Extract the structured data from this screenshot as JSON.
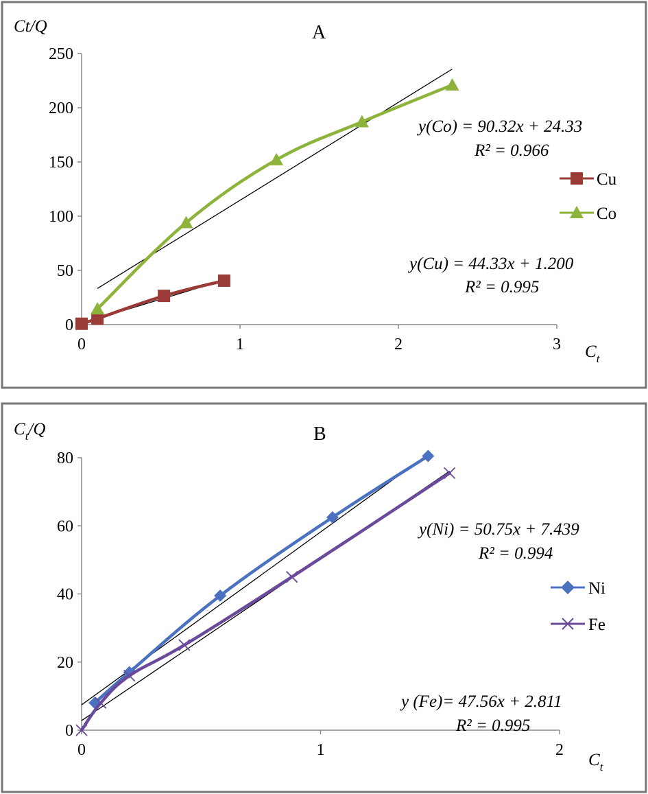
{
  "chart_data": [
    {
      "type": "line",
      "title": "A",
      "ylabel": "Ct/Q",
      "xlabel": "C",
      "xlabel_sub": "t",
      "xlim": [
        0,
        3
      ],
      "ylim": [
        0,
        250
      ],
      "x_ticks": [
        0,
        1,
        2,
        3
      ],
      "y_ticks": [
        0,
        50,
        100,
        150,
        200,
        250
      ],
      "grid": false,
      "legend_position": "right",
      "series": [
        {
          "name": "Cu",
          "marker": "square",
          "color": "#9b3b38",
          "points": [
            [
              0.0,
              0.8
            ],
            [
              0.1,
              5.5
            ],
            [
              0.52,
              26.5
            ],
            [
              0.9,
              40.5
            ]
          ],
          "trendline": {
            "slope": 44.33,
            "intercept": 1.2,
            "x_range": [
              0.0,
              0.9
            ],
            "color": "#000000"
          }
        },
        {
          "name": "Co",
          "marker": "triangle",
          "color": "#8db33a",
          "points": [
            [
              0.1,
              14.5
            ],
            [
              0.66,
              94
            ],
            [
              1.23,
              152
            ],
            [
              1.77,
              187
            ],
            [
              2.34,
              221
            ]
          ],
          "trendline": {
            "slope": 90.32,
            "intercept": 24.33,
            "x_range": [
              0.1,
              2.34
            ],
            "color": "#000000"
          }
        }
      ],
      "annotations": [
        {
          "line1": "y(Co) = 90.32x + 24.33",
          "line2": "R² = 0.966"
        },
        {
          "line1": "y(Cu) = 44.33x + 1.200",
          "line2": "R² = 0.995"
        }
      ]
    },
    {
      "type": "line",
      "title": "B",
      "ylabel_main": "C",
      "ylabel_sub": "t",
      "ylabel_rest": "/Q",
      "xlabel": "C",
      "xlabel_sub": "t",
      "xlim": [
        0,
        2
      ],
      "ylim": [
        0,
        80
      ],
      "x_ticks": [
        0,
        1,
        2
      ],
      "y_ticks": [
        0,
        20,
        40,
        60,
        80
      ],
      "grid": false,
      "legend_position": "right",
      "series": [
        {
          "name": "Ni",
          "marker": "diamond",
          "color": "#4a72c0",
          "points": [
            [
              0.055,
              8
            ],
            [
              0.2,
              17
            ],
            [
              0.58,
              39.5
            ],
            [
              1.05,
              62.5
            ],
            [
              1.45,
              80.5
            ]
          ],
          "trendline": {
            "slope": 50.75,
            "intercept": 7.439,
            "x_range": [
              0.0,
              1.43
            ],
            "color": "#000000"
          }
        },
        {
          "name": "Fe",
          "marker": "x",
          "color": "#6a4a9a",
          "points": [
            [
              0.0,
              0
            ],
            [
              0.08,
              8
            ],
            [
              0.2,
              16
            ],
            [
              0.43,
              25
            ],
            [
              0.88,
              45
            ],
            [
              1.54,
              75.5
            ]
          ],
          "trendline": {
            "slope": 47.56,
            "intercept": 2.811,
            "x_range": [
              0.0,
              1.54
            ],
            "color": "#000000"
          }
        }
      ],
      "annotations": [
        {
          "line1": "y(Ni) = 50.75x + 7.439",
          "line2": "R² = 0.994"
        },
        {
          "line1": "y (Fe)= 47.56x + 2.811",
          "line2": "R² = 0.995"
        }
      ]
    }
  ]
}
